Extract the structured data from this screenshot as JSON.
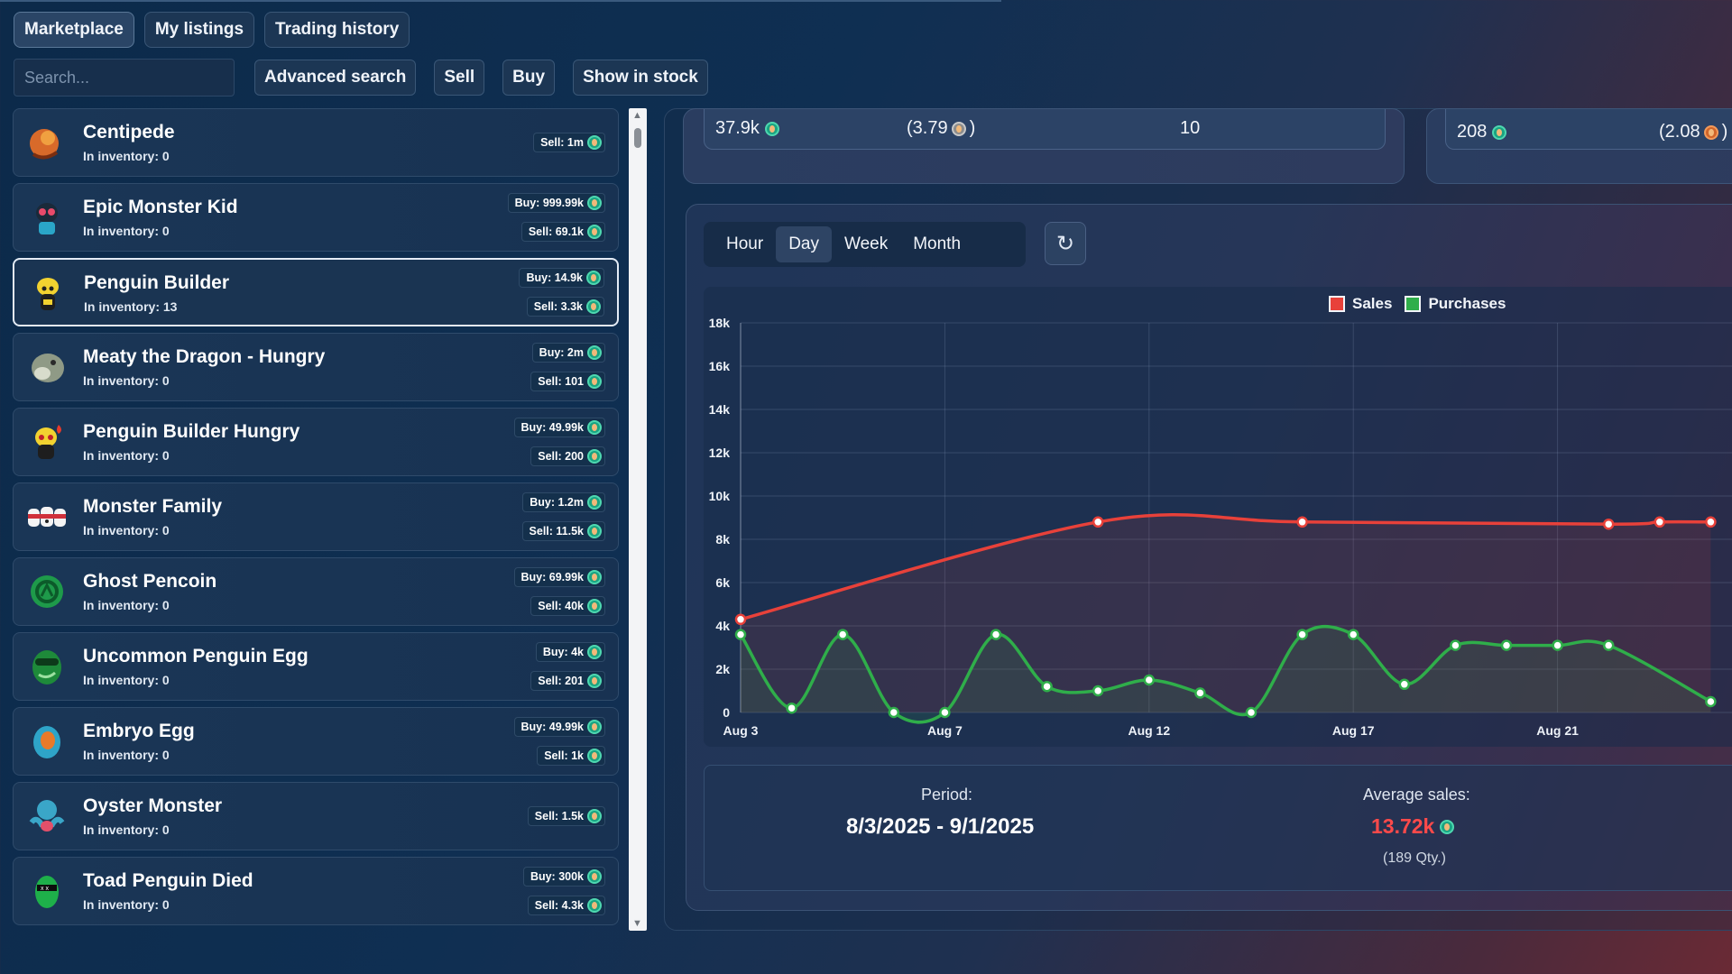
{
  "tabs": [
    "Marketplace",
    "My listings",
    "Trading history"
  ],
  "toolbar": {
    "search_placeholder": "Search...",
    "advanced_search": "Advanced search",
    "sell": "Sell",
    "buy": "Buy",
    "show_in_stock": "Show in stock"
  },
  "items": [
    {
      "name": "Centipede",
      "inventory": "In inventory: 0",
      "buy": null,
      "sell": "Sell: 1m",
      "icon": "centipede-icon"
    },
    {
      "name": "Epic Monster Kid",
      "inventory": "In inventory: 0",
      "buy": "Buy: 999.99k",
      "sell": "Sell: 69.1k",
      "icon": "monster-kid-icon"
    },
    {
      "name": "Penguin Builder",
      "inventory": "In inventory: 13",
      "buy": "Buy: 14.9k",
      "sell": "Sell: 3.3k",
      "icon": "penguin-builder-icon",
      "selected": true
    },
    {
      "name": "Meaty the Dragon - Hungry",
      "inventory": "In inventory: 0",
      "buy": "Buy: 2m",
      "sell": "Sell: 101",
      "icon": "dragon-icon"
    },
    {
      "name": "Penguin Builder Hungry",
      "inventory": "In inventory: 0",
      "buy": "Buy: 49.99k",
      "sell": "Sell: 200",
      "icon": "penguin-hungry-icon"
    },
    {
      "name": "Monster Family",
      "inventory": "In inventory: 0",
      "buy": "Buy: 1.2m",
      "sell": "Sell: 11.5k",
      "icon": "monster-family-icon"
    },
    {
      "name": "Ghost Pencoin",
      "inventory": "In inventory: 0",
      "buy": "Buy: 69.99k",
      "sell": "Sell: 40k",
      "icon": "ghost-pencoin-icon"
    },
    {
      "name": "Uncommon Penguin Egg",
      "inventory": "In inventory: 0",
      "buy": "Buy: 4k",
      "sell": "Sell: 201",
      "icon": "penguin-egg-icon"
    },
    {
      "name": "Embryo Egg",
      "inventory": "In inventory: 0",
      "buy": "Buy: 49.99k",
      "sell": "Sell: 1k",
      "icon": "embryo-egg-icon"
    },
    {
      "name": "Oyster Monster",
      "inventory": "In inventory: 0",
      "buy": null,
      "sell": "Sell: 1.5k",
      "icon": "oyster-monster-icon"
    },
    {
      "name": "Toad Penguin Died",
      "inventory": "In inventory: 0",
      "buy": "Buy: 300k",
      "sell": "Sell: 4.3k",
      "icon": "toad-penguin-icon"
    }
  ],
  "stats": {
    "left_value": "37.9k",
    "left_paren": "(3.79",
    "left_paren_close": ")",
    "left_count": "10",
    "right_value": "208",
    "right_paren": "(2.08",
    "right_paren_close": ")"
  },
  "timeframes": [
    "Hour",
    "Day",
    "Week",
    "Month"
  ],
  "active_timeframe": "Day",
  "refresh_icon": "↻",
  "chart_data": {
    "type": "line",
    "legend": [
      "Sales",
      "Purchases"
    ],
    "x_ticks": [
      "Aug 3",
      "Aug 7",
      "Aug 12",
      "Aug 17",
      "Aug 21"
    ],
    "y_ticks": [
      "0",
      "2k",
      "4k",
      "6k",
      "8k",
      "10k",
      "12k",
      "14k",
      "16k",
      "18k"
    ],
    "ylim": [
      0,
      18000
    ],
    "series": [
      {
        "name": "Sales",
        "color": "#e8413a",
        "x": [
          0,
          7,
          11,
          17,
          18,
          19
        ],
        "values": [
          4300,
          8800,
          8800,
          8700,
          8800,
          8800
        ]
      },
      {
        "name": "Purchases",
        "color": "#2fae4a",
        "x": [
          0,
          1,
          2,
          3,
          4,
          5,
          6,
          7,
          8,
          9,
          10,
          11,
          12,
          13,
          14,
          15,
          16,
          17,
          19
        ],
        "values": [
          3600,
          200,
          3600,
          0,
          0,
          3600,
          1200,
          1000,
          1500,
          900,
          0,
          3600,
          3600,
          1300,
          3100,
          3100,
          3100,
          3100,
          500
        ]
      }
    ]
  },
  "summary": {
    "period_label": "Period:",
    "period_value": "8/3/2025 - 9/1/2025",
    "avg_label": "Average sales:",
    "avg_value": "13.72k",
    "qty": "(189 Qty.)"
  },
  "colors": {
    "accent_red": "#ff4a4a",
    "sales": "#e8413a",
    "purchases": "#2fae4a",
    "coin": "#1aa382"
  }
}
